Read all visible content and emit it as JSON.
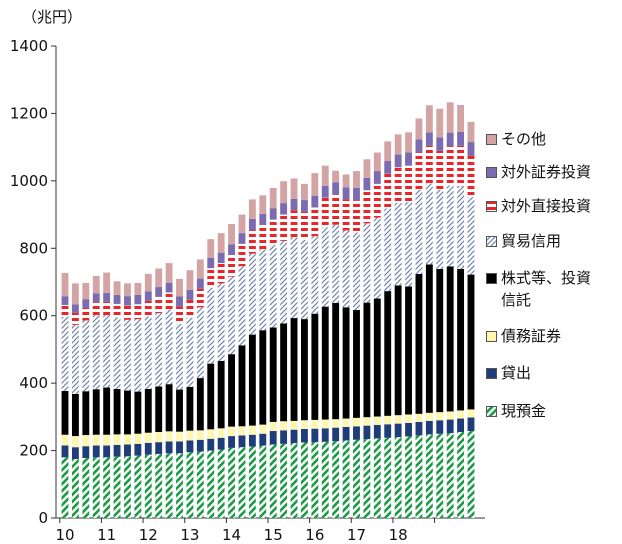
{
  "chart_data": {
    "type": "bar",
    "stacked": true,
    "unit": "（兆円）",
    "ylim": [
      0,
      1400
    ],
    "yticks": [
      0,
      200,
      400,
      600,
      800,
      1000,
      1200,
      1400
    ],
    "xtick_labels": [
      "10",
      "11",
      "12",
      "13",
      "14",
      "15",
      "16",
      "17",
      "18"
    ],
    "bars_per_year": 4,
    "legend_position": "right",
    "series": [
      {
        "key": "deposit",
        "name": "現預金",
        "color": "#1e9a46",
        "pattern": "green-diag",
        "values": [
          180,
          175,
          178,
          180,
          180,
          182,
          183,
          185,
          188,
          190,
          192,
          192,
          195,
          197,
          200,
          203,
          208,
          210,
          212,
          215,
          218,
          220,
          222,
          224,
          225,
          226,
          228,
          230,
          232,
          234,
          236,
          238,
          240,
          242,
          245,
          248,
          250,
          252,
          255,
          258
        ]
      },
      {
        "key": "loans",
        "name": "貸出",
        "color": "#1f3d7a",
        "pattern": "solid",
        "values": [
          35,
          35,
          35,
          35,
          35,
          35,
          35,
          35,
          35,
          35,
          35,
          35,
          35,
          35,
          35,
          35,
          35,
          35,
          35,
          35,
          40,
          40,
          40,
          40,
          40,
          40,
          40,
          40,
          40,
          40,
          40,
          40,
          40,
          40,
          40,
          40,
          40,
          40,
          40,
          40
        ]
      },
      {
        "key": "bonds",
        "name": "債務証券",
        "color": "#fff7b0",
        "pattern": "solid",
        "values": [
          32,
          33,
          33,
          32,
          32,
          31,
          30,
          30,
          30,
          30,
          30,
          29,
          29,
          28,
          28,
          28,
          28,
          27,
          27,
          27,
          27,
          27,
          26,
          26,
          26,
          26,
          25,
          25,
          25,
          25,
          25,
          25,
          25,
          25,
          24,
          24,
          24,
          24,
          24,
          24
        ]
      },
      {
        "key": "equity",
        "name": "株式等、投資\n信託",
        "color": "#000000",
        "pattern": "solid",
        "values": [
          130,
          125,
          130,
          135,
          140,
          135,
          130,
          125,
          130,
          135,
          140,
          125,
          130,
          155,
          195,
          200,
          215,
          240,
          270,
          280,
          280,
          290,
          305,
          300,
          315,
          335,
          345,
          330,
          320,
          340,
          350,
          370,
          385,
          380,
          415,
          440,
          425,
          430,
          420,
          400
        ]
      },
      {
        "key": "trade",
        "name": "貿易信用",
        "color": "#b8c4d6",
        "pattern": "blue-diag",
        "values": [
          220,
          205,
          210,
          220,
          215,
          212,
          210,
          215,
          215,
          218,
          222,
          195,
          205,
          210,
          225,
          230,
          230,
          235,
          240,
          240,
          245,
          245,
          240,
          235,
          230,
          235,
          232,
          228,
          230,
          235,
          240,
          245,
          245,
          250,
          250,
          240,
          235,
          240,
          245,
          230
        ]
      },
      {
        "key": "fdi",
        "name": "対外直接投資",
        "color": "#e8262a",
        "pattern": "red-horiz",
        "values": [
          35,
          36,
          37,
          38,
          39,
          40,
          42,
          44,
          46,
          48,
          50,
          51,
          53,
          55,
          58,
          60,
          64,
          66,
          70,
          72,
          75,
          78,
          80,
          83,
          85,
          88,
          90,
          92,
          95,
          98,
          100,
          103,
          105,
          108,
          110,
          112,
          115,
          117,
          120,
          122
        ]
      },
      {
        "key": "portfolio",
        "name": "対外証券投資",
        "color": "#7b6bb0",
        "pattern": "solid",
        "values": [
          25,
          25,
          26,
          26,
          27,
          27,
          28,
          28,
          28,
          29,
          29,
          30,
          30,
          30,
          31,
          31,
          32,
          32,
          33,
          33,
          34,
          34,
          34,
          35,
          35,
          35,
          36,
          36,
          37,
          37,
          38,
          38,
          38,
          39,
          39,
          40,
          40,
          40,
          41,
          41
        ]
      },
      {
        "key": "other",
        "name": "その他",
        "color": "#d4a3a3",
        "pattern": "solid",
        "values": [
          70,
          62,
          48,
          52,
          60,
          40,
          38,
          35,
          52,
          55,
          58,
          52,
          58,
          57,
          55,
          58,
          60,
          55,
          58,
          55,
          60,
          65,
          60,
          48,
          67,
          60,
          34,
          38,
          50,
          55,
          55,
          58,
          60,
          60,
          62,
          80,
          85,
          90,
          80,
          60
        ]
      }
    ]
  }
}
